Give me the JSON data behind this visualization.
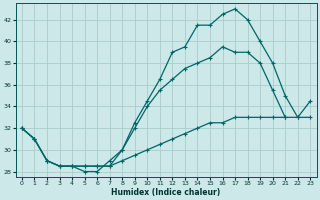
{
  "xlabel": "Humidex (Indice chaleur)",
  "bg_color": "#cce8e8",
  "grid_color": "#aacccc",
  "line_color": "#006666",
  "xlim": [
    -0.5,
    23.5
  ],
  "ylim": [
    27.5,
    43.5
  ],
  "yticks": [
    28,
    30,
    32,
    34,
    36,
    38,
    40,
    42
  ],
  "xticks": [
    0,
    1,
    2,
    3,
    4,
    5,
    6,
    7,
    8,
    9,
    10,
    11,
    12,
    13,
    14,
    15,
    16,
    17,
    18,
    19,
    20,
    21,
    22,
    23
  ],
  "line_bottom_x": [
    0,
    1,
    2,
    3,
    4,
    5,
    6,
    7,
    8,
    9,
    10,
    11,
    12,
    13,
    14,
    15,
    16,
    17,
    18,
    19,
    20,
    21,
    22,
    23
  ],
  "line_bottom_y": [
    32,
    31,
    29,
    28.5,
    28.5,
    28.5,
    28.5,
    28.5,
    29,
    29.5,
    30,
    30.5,
    31,
    31.5,
    32,
    32.5,
    32.5,
    33,
    33,
    33,
    33,
    33,
    33,
    33
  ],
  "line_mid_x": [
    0,
    1,
    2,
    3,
    4,
    5,
    6,
    7,
    8,
    9,
    10,
    11,
    12,
    13,
    14,
    15,
    16,
    17,
    18,
    19,
    20,
    21
  ],
  "line_mid_y": [
    32,
    31,
    29,
    28.5,
    28.5,
    28.5,
    28.5,
    28.5,
    30,
    32,
    34,
    35.5,
    36.5,
    37.5,
    38,
    38.5,
    39.5,
    39,
    39,
    38,
    35.5,
    33
  ],
  "line_top_x": [
    0,
    1,
    2,
    3,
    4,
    5,
    6,
    7,
    8,
    9,
    10,
    11,
    12,
    13,
    14,
    15,
    16,
    17,
    18,
    19,
    20,
    21,
    22,
    23
  ],
  "line_top_y": [
    32,
    31,
    29,
    28.5,
    28.5,
    28,
    28,
    29,
    30,
    32.5,
    34.5,
    36.5,
    39,
    39.5,
    41.5,
    41.5,
    42.5,
    43,
    42,
    40,
    38,
    35,
    33,
    34.5
  ]
}
